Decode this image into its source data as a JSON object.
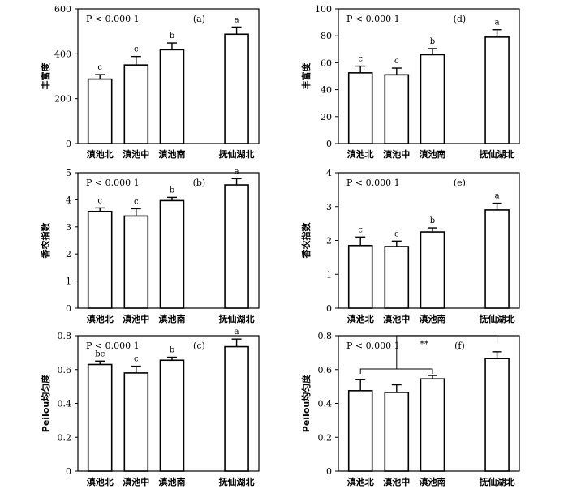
{
  "chart_data": [
    {
      "type": "bar",
      "panel_label": "(a)",
      "p_text": "P < 0.000 1",
      "ylabel": "丰富度",
      "categories": [
        "滇池北",
        "滇池中",
        "滇池南",
        "抚仙湖北"
      ],
      "values": [
        287,
        350,
        418,
        487
      ],
      "errors": [
        20,
        38,
        30,
        32
      ],
      "letters": [
        "c",
        "c",
        "b",
        "a"
      ],
      "ylim": [
        0,
        600
      ],
      "yticks": [
        "0",
        "200",
        "400",
        "600"
      ]
    },
    {
      "type": "bar",
      "panel_label": "(b)",
      "p_text": "P < 0.000 1",
      "ylabel": "香农指数",
      "categories": [
        "滇池北",
        "滇池中",
        "滇池南",
        "抚仙湖北"
      ],
      "values": [
        3.57,
        3.4,
        3.97,
        4.55
      ],
      "errors": [
        0.13,
        0.27,
        0.12,
        0.23
      ],
      "letters": [
        "c",
        "c",
        "b",
        "a"
      ],
      "ylim": [
        0,
        5
      ],
      "yticks": [
        "0",
        "1",
        "2",
        "3",
        "4",
        "5"
      ]
    },
    {
      "type": "bar",
      "panel_label": "(c)",
      "p_text": "P < 0.000 1",
      "ylabel": "Peilou均匀度",
      "categories": [
        "滇池北",
        "滇池中",
        "滇池南",
        "抚仙湖北"
      ],
      "values": [
        0.63,
        0.58,
        0.655,
        0.735
      ],
      "errors": [
        0.02,
        0.04,
        0.018,
        0.045
      ],
      "letters": [
        "bc",
        "c",
        "b",
        "a"
      ],
      "ylim": [
        0,
        0.8
      ],
      "yticks": [
        "0",
        "0.2",
        "0.4",
        "0.6",
        "0.8"
      ]
    },
    {
      "type": "bar",
      "panel_label": "(d)",
      "p_text": "P < 0.000 1",
      "ylabel": "丰富度",
      "categories": [
        "滇池北",
        "滇池中",
        "滇池南",
        "抚仙湖北"
      ],
      "values": [
        52.5,
        51,
        66,
        79
      ],
      "errors": [
        5,
        5,
        4.5,
        5.5
      ],
      "letters": [
        "c",
        "c",
        "b",
        "a"
      ],
      "ylim": [
        0,
        100
      ],
      "yticks": [
        "0",
        "20",
        "40",
        "60",
        "80",
        "100"
      ]
    },
    {
      "type": "bar",
      "panel_label": "(e)",
      "p_text": "P < 0.000 1",
      "ylabel": "香农指数",
      "categories": [
        "滇池北",
        "滇池中",
        "滇池南",
        "抚仙湖北"
      ],
      "values": [
        1.85,
        1.82,
        2.25,
        2.9
      ],
      "errors": [
        0.25,
        0.16,
        0.12,
        0.2
      ],
      "letters": [
        "c",
        "c",
        "b",
        "a"
      ],
      "ylim": [
        0,
        4
      ],
      "yticks": [
        "0",
        "1",
        "2",
        "3",
        "4"
      ]
    },
    {
      "type": "bar",
      "panel_label": "(f)",
      "p_text": "P < 0.000 1",
      "ylabel": "Peilou均匀度",
      "categories": [
        "滇池北",
        "滇池中",
        "滇池南",
        "抚仙湖北"
      ],
      "values": [
        0.475,
        0.465,
        0.545,
        0.665
      ],
      "errors": [
        0.065,
        0.045,
        0.02,
        0.04
      ],
      "letters": [
        "",
        "",
        "",
        ""
      ],
      "significance": "**",
      "ylim": [
        0,
        0.8
      ],
      "yticks": [
        "0",
        "0.2",
        "0.4",
        "0.6",
        "0.8"
      ]
    }
  ]
}
